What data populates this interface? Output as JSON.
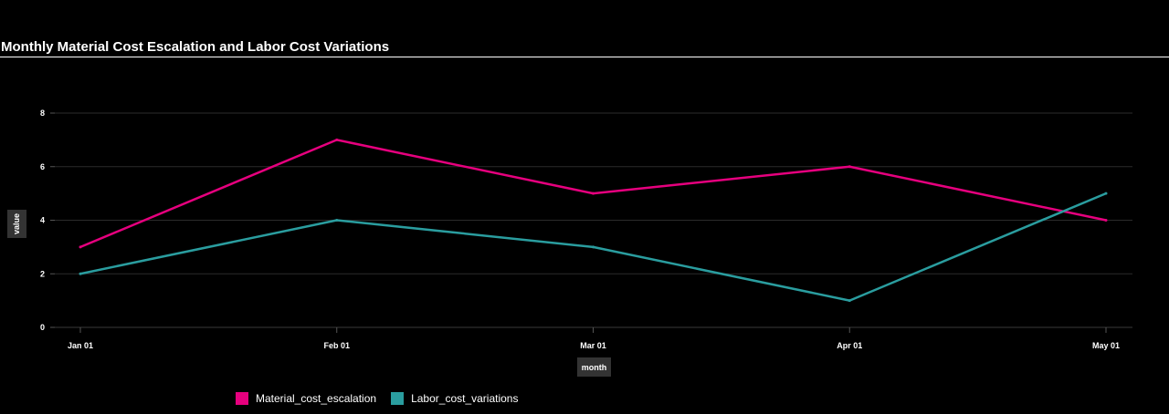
{
  "title": "Monthly Material Cost Escalation and Labor Cost Variations",
  "chart_data": {
    "type": "line",
    "title": "Monthly Material Cost Escalation and Labor Cost Variations",
    "xlabel": "month",
    "ylabel": "value",
    "categories": [
      "Jan 01",
      "Feb 01",
      "Mar 01",
      "Apr 01",
      "May 01"
    ],
    "yticks": [
      0,
      2,
      4,
      6,
      8
    ],
    "ylim": [
      0,
      8
    ],
    "grid": true,
    "legend_position": "bottom-left",
    "series": [
      {
        "name": "Material_cost_escalation",
        "color": "#e6007e",
        "values": [
          3,
          7,
          5,
          6,
          4
        ]
      },
      {
        "name": "Labor_cost_variations",
        "color": "#2a9d9f",
        "values": [
          2,
          4,
          3,
          1,
          5
        ]
      }
    ]
  },
  "legend": {
    "items": [
      {
        "label": "Material_cost_escalation",
        "color": "#e6007e"
      },
      {
        "label": "Labor_cost_variations",
        "color": "#2a9d9f"
      }
    ]
  }
}
